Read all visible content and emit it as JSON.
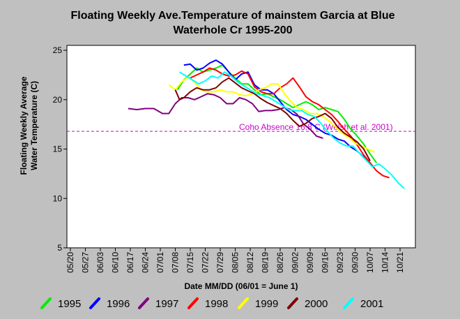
{
  "chart_data": {
    "type": "line",
    "title_lines": [
      "Floating Weekly Ave.Temperature of mainstem Garcia at Blue",
      "Waterhole Cr 1995-200"
    ],
    "xlabel": "Date MM/DD (06/01 = June 1)",
    "ylabel_lines": [
      "Floating Weekly Average",
      "Water Temperature (C)"
    ],
    "x_ticks": [
      "05/20",
      "05/27",
      "06/03",
      "06/10",
      "06/17",
      "06/24",
      "07/01",
      "07/08",
      "07/15",
      "07/22",
      "07/29",
      "08/05",
      "08/12",
      "08/19",
      "08/26",
      "09/02",
      "09/09",
      "09/16",
      "09/23",
      "09/30",
      "10/07",
      "10/14",
      "10/21"
    ],
    "y_ticks": [
      5,
      10,
      15,
      20,
      25
    ],
    "ylim": [
      5,
      25.5
    ],
    "x_unit": "day index (0 = 05/20)",
    "xlim": [
      0,
      161
    ],
    "threshold": {
      "value": 16.8,
      "label": "Coho Absence 16.8 C (Welsh et al. 2001)",
      "color": "#cc00cc"
    },
    "series": [
      {
        "name": "1995",
        "color": "#00ee00",
        "points": [
          [
            50,
            21.0
          ],
          [
            53,
            22.0
          ],
          [
            56,
            22.6
          ],
          [
            59,
            23.2
          ],
          [
            62,
            22.8
          ],
          [
            65,
            23.0
          ],
          [
            68,
            23.2
          ],
          [
            71,
            23.5
          ],
          [
            74,
            22.8
          ],
          [
            77,
            22.2
          ],
          [
            80,
            21.6
          ],
          [
            83,
            21.6
          ],
          [
            86,
            21.0
          ],
          [
            89,
            20.5
          ],
          [
            92,
            20.6
          ],
          [
            95,
            20.3
          ],
          [
            98,
            20.0
          ],
          [
            101,
            19.6
          ],
          [
            104,
            19.2
          ],
          [
            107,
            19.5
          ],
          [
            110,
            19.8
          ],
          [
            113,
            19.5
          ],
          [
            116,
            19.0
          ],
          [
            119,
            19.2
          ],
          [
            122,
            19.0
          ],
          [
            125,
            18.8
          ],
          [
            128,
            18.0
          ],
          [
            131,
            17.0
          ],
          [
            134,
            16.3
          ],
          [
            137,
            15.5
          ],
          [
            140,
            14.5
          ],
          [
            143,
            13.6
          ]
        ]
      },
      {
        "name": "1996",
        "color": "#0000ff",
        "points": [
          [
            53,
            23.5
          ],
          [
            56,
            23.6
          ],
          [
            59,
            23.0
          ],
          [
            62,
            23.2
          ],
          [
            65,
            23.7
          ],
          [
            68,
            24.0
          ],
          [
            71,
            23.6
          ],
          [
            74,
            22.8
          ],
          [
            77,
            22.0
          ],
          [
            80,
            22.6
          ],
          [
            83,
            22.8
          ],
          [
            86,
            21.5
          ],
          [
            89,
            21.0
          ],
          [
            92,
            21.0
          ],
          [
            95,
            20.6
          ],
          [
            98,
            19.8
          ],
          [
            101,
            19.0
          ],
          [
            104,
            18.5
          ],
          [
            107,
            18.3
          ],
          [
            110,
            18.0
          ],
          [
            113,
            17.5
          ],
          [
            116,
            17.0
          ],
          [
            119,
            16.6
          ],
          [
            122,
            16.4
          ],
          [
            125,
            16.0
          ],
          [
            128,
            15.8
          ],
          [
            131,
            15.2
          ],
          [
            134,
            14.8
          ],
          [
            137,
            14.2
          ],
          [
            140,
            13.5
          ]
        ]
      },
      {
        "name": "1997",
        "color": "#800080",
        "points": [
          [
            27,
            19.1
          ],
          [
            31,
            19.0
          ],
          [
            35,
            19.1
          ],
          [
            39,
            19.1
          ],
          [
            43,
            18.6
          ],
          [
            46,
            18.6
          ],
          [
            49,
            19.6
          ],
          [
            52,
            20.2
          ],
          [
            55,
            20.2
          ],
          [
            58,
            20.0
          ],
          [
            61,
            20.3
          ],
          [
            64,
            20.6
          ],
          [
            67,
            20.5
          ],
          [
            70,
            20.2
          ],
          [
            73,
            19.6
          ],
          [
            76,
            19.6
          ],
          [
            79,
            20.2
          ],
          [
            82,
            20.0
          ],
          [
            85,
            19.6
          ],
          [
            88,
            18.8
          ],
          [
            91,
            18.9
          ],
          [
            94,
            18.9
          ],
          [
            97,
            19.0
          ],
          [
            100,
            19.2
          ],
          [
            103,
            19.0
          ],
          [
            106,
            18.5
          ],
          [
            109,
            17.5
          ],
          [
            112,
            17.0
          ],
          [
            115,
            16.3
          ],
          [
            118,
            16.1
          ]
        ]
      },
      {
        "name": "1998",
        "color": "#ff0000",
        "points": [
          [
            56,
            22.2
          ],
          [
            59,
            22.5
          ],
          [
            62,
            22.8
          ],
          [
            65,
            23.2
          ],
          [
            68,
            23.0
          ],
          [
            71,
            22.6
          ],
          [
            74,
            22.4
          ],
          [
            77,
            22.5
          ],
          [
            80,
            22.9
          ],
          [
            83,
            22.6
          ],
          [
            86,
            21.3
          ],
          [
            89,
            20.8
          ],
          [
            92,
            20.6
          ],
          [
            95,
            20.6
          ],
          [
            98,
            21.2
          ],
          [
            101,
            21.6
          ],
          [
            104,
            22.2
          ],
          [
            107,
            21.3
          ],
          [
            110,
            20.3
          ],
          [
            113,
            19.8
          ],
          [
            116,
            19.5
          ],
          [
            119,
            19.0
          ],
          [
            122,
            18.5
          ],
          [
            125,
            17.8
          ],
          [
            128,
            17.0
          ],
          [
            131,
            16.3
          ],
          [
            134,
            15.4
          ],
          [
            137,
            14.4
          ],
          [
            140,
            13.6
          ],
          [
            143,
            12.8
          ],
          [
            146,
            12.3
          ],
          [
            149,
            12.1
          ]
        ]
      },
      {
        "name": "1999",
        "color": "#ffff00",
        "points": [
          [
            46,
            21.5
          ],
          [
            49,
            21.0
          ],
          [
            52,
            21.8
          ],
          [
            55,
            22.3
          ],
          [
            58,
            21.8
          ],
          [
            61,
            21.0
          ],
          [
            64,
            20.8
          ],
          [
            67,
            20.8
          ],
          [
            70,
            21.0
          ],
          [
            73,
            20.8
          ],
          [
            76,
            20.8
          ],
          [
            79,
            20.5
          ],
          [
            82,
            20.4
          ],
          [
            85,
            20.6
          ],
          [
            88,
            21.0
          ],
          [
            91,
            21.2
          ],
          [
            94,
            21.6
          ],
          [
            97,
            21.6
          ],
          [
            100,
            20.6
          ],
          [
            103,
            19.8
          ],
          [
            106,
            19.2
          ],
          [
            109,
            19.0
          ],
          [
            112,
            18.6
          ],
          [
            115,
            18.6
          ],
          [
            118,
            18.3
          ],
          [
            121,
            17.8
          ],
          [
            124,
            17.2
          ],
          [
            127,
            16.6
          ],
          [
            130,
            16.2
          ],
          [
            133,
            15.6
          ],
          [
            136,
            15.3
          ],
          [
            139,
            15.0
          ],
          [
            142,
            14.7
          ]
        ]
      },
      {
        "name": "2000",
        "color": "#800000",
        "points": [
          [
            49,
            21.0
          ],
          [
            51,
            20.0
          ],
          [
            53,
            20.2
          ],
          [
            56,
            20.8
          ],
          [
            59,
            21.2
          ],
          [
            62,
            21.0
          ],
          [
            65,
            21.0
          ],
          [
            68,
            21.2
          ],
          [
            71,
            21.8
          ],
          [
            74,
            22.2
          ],
          [
            77,
            21.7
          ],
          [
            80,
            21.2
          ],
          [
            83,
            20.9
          ],
          [
            86,
            20.6
          ],
          [
            89,
            20.1
          ],
          [
            92,
            19.7
          ],
          [
            95,
            19.4
          ],
          [
            98,
            19.1
          ],
          [
            101,
            18.6
          ],
          [
            104,
            17.9
          ],
          [
            107,
            17.3
          ],
          [
            110,
            17.6
          ],
          [
            113,
            18.1
          ],
          [
            116,
            18.3
          ],
          [
            119,
            18.6
          ],
          [
            122,
            18.1
          ],
          [
            125,
            17.2
          ],
          [
            128,
            16.6
          ],
          [
            131,
            16.2
          ],
          [
            134,
            15.7
          ],
          [
            137,
            15.0
          ],
          [
            140,
            13.8
          ]
        ]
      },
      {
        "name": "2001",
        "color": "#00ffff",
        "points": [
          [
            51,
            22.8
          ],
          [
            54,
            22.4
          ],
          [
            57,
            22.0
          ],
          [
            60,
            21.6
          ],
          [
            63,
            21.9
          ],
          [
            66,
            22.4
          ],
          [
            69,
            22.2
          ],
          [
            72,
            22.8
          ],
          [
            75,
            22.4
          ],
          [
            78,
            21.8
          ],
          [
            81,
            21.4
          ],
          [
            84,
            21.0
          ],
          [
            87,
            20.6
          ],
          [
            90,
            20.4
          ],
          [
            93,
            20.2
          ],
          [
            96,
            19.8
          ],
          [
            99,
            19.4
          ],
          [
            102,
            19.0
          ],
          [
            105,
            18.9
          ],
          [
            108,
            18.9
          ],
          [
            111,
            18.5
          ],
          [
            114,
            18.3
          ],
          [
            117,
            17.6
          ],
          [
            120,
            16.8
          ],
          [
            123,
            16.1
          ],
          [
            126,
            15.6
          ],
          [
            129,
            15.3
          ],
          [
            132,
            15.3
          ],
          [
            135,
            14.6
          ],
          [
            138,
            13.9
          ],
          [
            141,
            13.2
          ],
          [
            144,
            13.5
          ],
          [
            147,
            13.0
          ],
          [
            150,
            12.4
          ],
          [
            153,
            11.6
          ],
          [
            156,
            11.0
          ]
        ]
      }
    ]
  }
}
